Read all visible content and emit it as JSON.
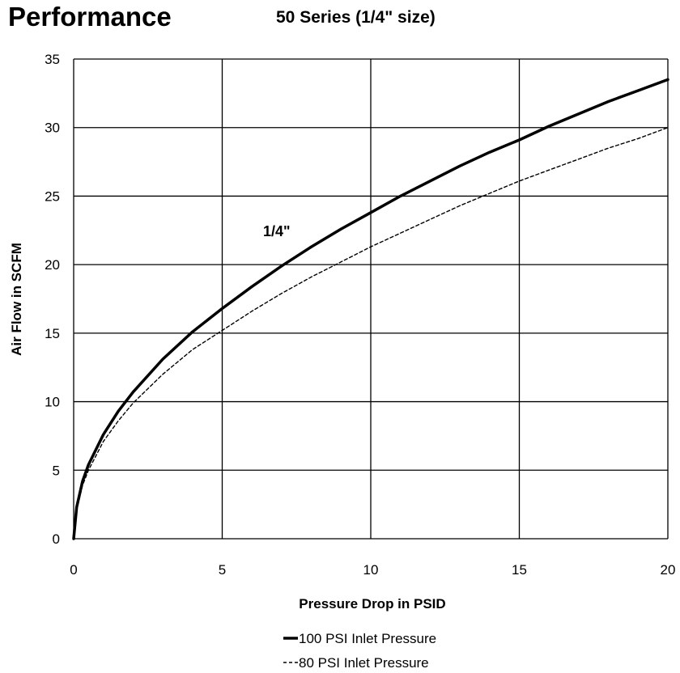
{
  "header": {
    "title": "Performance",
    "subtitle": "50 Series (1/4\" size)"
  },
  "chart_data": {
    "type": "line",
    "title": "Performance",
    "subtitle": "50 Series (1/4\" size)",
    "xlabel": "Pressure Drop in PSID",
    "ylabel": "Air Flow in SCFM",
    "xlim": [
      0,
      20
    ],
    "ylim": [
      0,
      35
    ],
    "xticks": [
      0,
      5,
      10,
      15,
      20
    ],
    "yticks": [
      0,
      5,
      10,
      15,
      20,
      25,
      30,
      35
    ],
    "grid": true,
    "legend_position": "bottom-center",
    "annotation": "1/4\"",
    "series": [
      {
        "name": "100 PSI Inlet Pressure",
        "style": "solid",
        "color": "#000000",
        "x": [
          0,
          0.1,
          0.3,
          0.5,
          1,
          1.5,
          2,
          3,
          4,
          5,
          6,
          7,
          8,
          9,
          10,
          11,
          12,
          13,
          14,
          15,
          16,
          17,
          18,
          19,
          20
        ],
        "y": [
          0,
          2.3,
          4.2,
          5.4,
          7.6,
          9.3,
          10.7,
          13.1,
          15.1,
          16.8,
          18.4,
          19.9,
          21.3,
          22.6,
          23.8,
          25,
          26.1,
          27.2,
          28.2,
          29.1,
          30.1,
          31,
          31.9,
          32.7,
          33.5
        ]
      },
      {
        "name": "80 PSI Inlet Pressure",
        "style": "dashed",
        "color": "#000000",
        "x": [
          0,
          0.1,
          0.3,
          0.5,
          1,
          1.5,
          2,
          3,
          4,
          5,
          6,
          7,
          8,
          9,
          10,
          11,
          12,
          13,
          14,
          15,
          16,
          17,
          18,
          19,
          20
        ],
        "y": [
          0,
          2.1,
          3.9,
          5,
          7.1,
          8.6,
          9.9,
          12,
          13.8,
          15.2,
          16.6,
          17.9,
          19.1,
          20.2,
          21.3,
          22.3,
          23.3,
          24.3,
          25.2,
          26.1,
          26.9,
          27.7,
          28.5,
          29.2,
          30
        ]
      }
    ]
  }
}
